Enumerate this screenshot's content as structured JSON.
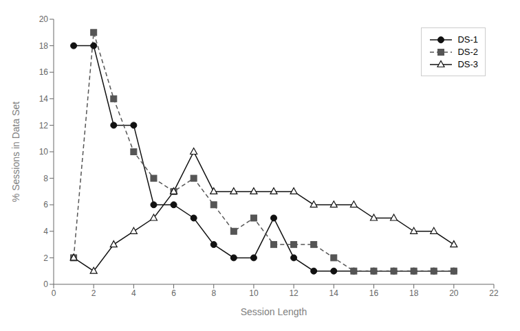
{
  "chart_data": {
    "type": "line",
    "x": [
      1,
      2,
      3,
      4,
      5,
      6,
      7,
      8,
      9,
      10,
      11,
      12,
      13,
      14,
      15,
      16,
      17,
      18,
      19,
      20
    ],
    "series": [
      {
        "name": "DS-1",
        "color": "#111111",
        "values": [
          18,
          18,
          12,
          12,
          6,
          6,
          5,
          3,
          2,
          2,
          5,
          2,
          1,
          1,
          1,
          1,
          1,
          1,
          1,
          1
        ],
        "marker": "circle",
        "line_style": "solid"
      },
      {
        "name": "DS-2",
        "color": "#555555",
        "values": [
          2,
          19,
          14,
          10,
          8,
          7,
          8,
          6,
          4,
          5,
          3,
          3,
          3,
          2,
          1,
          1,
          1,
          1,
          1,
          1
        ],
        "marker": "square",
        "line_style": "dashed"
      },
      {
        "name": "DS-3",
        "color": "#111111",
        "values": [
          2,
          1,
          3,
          4,
          5,
          7,
          10,
          7,
          7,
          7,
          7,
          7,
          6,
          6,
          6,
          5,
          5,
          4,
          4,
          3
        ],
        "marker": "open_triangle",
        "line_style": "solid"
      }
    ],
    "x_label": "Session Length",
    "y_label": "% Sessions in Data Set",
    "xlim": [
      0,
      22
    ],
    "ylim": [
      0,
      20
    ],
    "xticks": [
      0,
      2,
      4,
      6,
      8,
      10,
      12,
      14,
      16,
      18,
      20,
      22
    ],
    "yticks": [
      0,
      2,
      4,
      6,
      8,
      10,
      12,
      14,
      16,
      18,
      20
    ],
    "grid": false,
    "legend": "upper right"
  }
}
